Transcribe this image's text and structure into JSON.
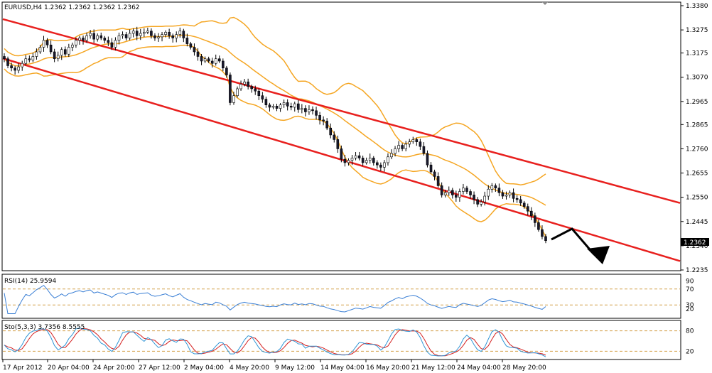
{
  "header": {
    "main": "EURUSD,H4  1.2362 1.2362 1.2362 1.2362",
    "rsi": "RSI(14) 25.9594",
    "sto": "Sto(5,3,3) 3.7356 8.5555"
  },
  "chart_data": [
    {
      "type": "candlestick",
      "title": "EURUSD,H4",
      "quote": {
        "open": 1.2362,
        "high": 1.2362,
        "low": 1.2362,
        "close": 1.2362
      },
      "last_price_label": "1.2362",
      "ylim": [
        1.2235,
        1.338
      ],
      "yticks": [
        "1.3380",
        "1.3275",
        "1.3175",
        "1.3070",
        "1.2965",
        "1.2865",
        "1.2760",
        "1.2655",
        "1.2550",
        "1.2445",
        "1.2340",
        "1.2235"
      ],
      "xticks": [
        "17 Apr 2012",
        "20 Apr 04:00",
        "24 Apr 20:00",
        "27 Apr 12:00",
        "2 May 04:00",
        "4 May 20:00",
        "9 May 12:00",
        "14 May 04:00",
        "16 May 20:00",
        "21 May 12:00",
        "24 May 04:00",
        "28 May 20:00"
      ],
      "close_path": [
        1.315,
        1.312,
        1.311,
        1.31,
        1.3115,
        1.313,
        1.315,
        1.3145,
        1.316,
        1.318,
        1.32,
        1.323,
        1.321,
        1.318,
        1.315,
        1.3165,
        1.319,
        1.317,
        1.32,
        1.321,
        1.323,
        1.324,
        1.323,
        1.325,
        1.326,
        1.3235,
        1.325,
        1.324,
        1.323,
        1.322,
        1.32,
        1.323,
        1.325,
        1.3255,
        1.324,
        1.326,
        1.327,
        1.325,
        1.326,
        1.3265,
        1.327,
        1.325,
        1.324,
        1.3245,
        1.3255,
        1.3265,
        1.325,
        1.324,
        1.3255,
        1.327,
        1.324,
        1.3215,
        1.32,
        1.318,
        1.316,
        1.314,
        1.315,
        1.314,
        1.313,
        1.315,
        1.314,
        1.311,
        1.308,
        1.296,
        1.299,
        1.302,
        1.304,
        1.305,
        1.303,
        1.302,
        1.301,
        1.299,
        1.2975,
        1.295,
        1.294,
        1.2945,
        1.2935,
        1.295,
        1.296,
        1.2945,
        1.294,
        1.2955,
        1.293,
        1.2935,
        1.292,
        1.293,
        1.2925,
        1.2905,
        1.2885,
        1.288,
        1.285,
        1.282,
        1.28,
        1.276,
        1.2715,
        1.27,
        1.271,
        1.272,
        1.273,
        1.272,
        1.27,
        1.271,
        1.272,
        1.27,
        1.269,
        1.268,
        1.27,
        1.2725,
        1.274,
        1.276,
        1.2775,
        1.276,
        1.278,
        1.279,
        1.28,
        1.279,
        1.277,
        1.274,
        1.269,
        1.266,
        1.264,
        1.26,
        1.256,
        1.257,
        1.258,
        1.256,
        1.255,
        1.2575,
        1.259,
        1.2575,
        1.256,
        1.254,
        1.252,
        1.253,
        1.2555,
        1.2585,
        1.26,
        1.259,
        1.257,
        1.2555,
        1.256,
        1.257,
        1.2545,
        1.254,
        1.2525,
        1.251,
        1.249,
        1.247,
        1.244,
        1.241,
        1.238,
        1.2362
      ],
      "bands": {
        "period": 20,
        "deviations": 2
      },
      "channel": {
        "upper": {
          "from": {
            "bar": 0,
            "price": 1.332
          },
          "to": {
            "bar": 230,
            "price": 1.235
          }
        },
        "lower": {
          "from": {
            "bar": 0,
            "price": 1.315
          },
          "to": {
            "bar": 200,
            "price": 1.222
          }
        }
      },
      "colors": {
        "candle_up": "#ffffff",
        "candle_down": "#1a1a2e",
        "bands": "#f5a623",
        "channel": "#e8201e",
        "forecast_arrow": "#000000",
        "grid": "#b0b0b0"
      }
    },
    {
      "type": "line",
      "name": "RSI(14)",
      "value": 25.9594,
      "ylim": [
        0,
        100
      ],
      "levels": [
        30,
        70
      ],
      "axis_labels": [
        "30",
        "70",
        "90",
        "20"
      ],
      "color": "#3a7fd5"
    },
    {
      "type": "line",
      "name": "Sto(5,3,3)",
      "main": 3.7356,
      "signal": 8.5555,
      "ylim": [
        0,
        100
      ],
      "levels": [
        20,
        80
      ],
      "axis_labels": [
        "20",
        "80"
      ],
      "colors": {
        "main": "#2f95d6",
        "signal": "#d42020"
      }
    }
  ]
}
